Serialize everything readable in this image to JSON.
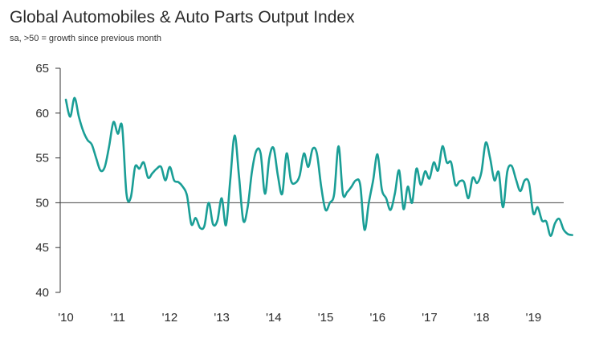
{
  "chart_data": {
    "type": "line",
    "title": "Global Automobiles & Auto Parts Output Index",
    "subtitle": "sa, >50 = growth since previous month",
    "xlabel": "",
    "ylabel": "",
    "ylim": [
      40,
      65
    ],
    "yticks": [
      40,
      45,
      50,
      55,
      60,
      65
    ],
    "xticks": [
      {
        "label": "'10",
        "t": 2010.0
      },
      {
        "label": "'11",
        "t": 2011.0
      },
      {
        "label": "'12",
        "t": 2012.0
      },
      {
        "label": "'13",
        "t": 2013.0
      },
      {
        "label": "'14",
        "t": 2014.0
      },
      {
        "label": "'15",
        "t": 2015.0
      },
      {
        "label": "'16",
        "t": 2016.0
      },
      {
        "label": "'17",
        "t": 2017.0
      },
      {
        "label": "'18",
        "t": 2018.0
      },
      {
        "label": "'19",
        "t": 2019.0
      }
    ],
    "reference_line": 50,
    "series": [
      {
        "name": "Output Index",
        "color": "#1a9e96",
        "start": 2010.0,
        "step": 0.0833,
        "values": [
          61.5,
          59.6,
          61.7,
          59.6,
          58.0,
          57.0,
          56.5,
          55.0,
          53.6,
          54.0,
          56.3,
          59.0,
          57.7,
          58.5,
          51.0,
          50.6,
          54.0,
          53.8,
          54.5,
          52.8,
          53.3,
          53.8,
          54.0,
          52.5,
          54.0,
          52.5,
          52.3,
          51.8,
          50.8,
          47.6,
          48.3,
          47.2,
          47.4,
          50.0,
          47.6,
          48.0,
          50.5,
          47.5,
          52.6,
          57.5,
          53.0,
          48.0,
          49.5,
          53.5,
          55.8,
          55.5,
          51.0,
          55.0,
          56.1,
          53.0,
          51.0,
          55.5,
          52.5,
          52.2,
          53.0,
          55.5,
          54.0,
          56.0,
          55.5,
          51.8,
          49.2,
          50.0,
          51.0,
          56.3,
          51.0,
          51.2,
          51.8,
          52.5,
          52.0,
          47.0,
          50.0,
          52.5,
          55.4,
          51.5,
          50.5,
          49.2,
          51.0,
          53.6,
          49.3,
          51.8,
          50.0,
          53.8,
          52.0,
          53.5,
          52.7,
          54.5,
          53.6,
          56.3,
          54.5,
          54.5,
          52.0,
          52.4,
          52.3,
          50.5,
          52.8,
          52.2,
          53.4,
          56.7,
          55.0,
          52.5,
          53.4,
          49.5,
          53.5,
          54.1,
          52.6,
          51.3,
          52.5,
          52.2,
          48.8,
          49.5,
          48.0,
          47.9,
          46.3,
          47.7,
          48.2,
          47.0,
          46.5,
          46.4
        ]
      }
    ]
  }
}
